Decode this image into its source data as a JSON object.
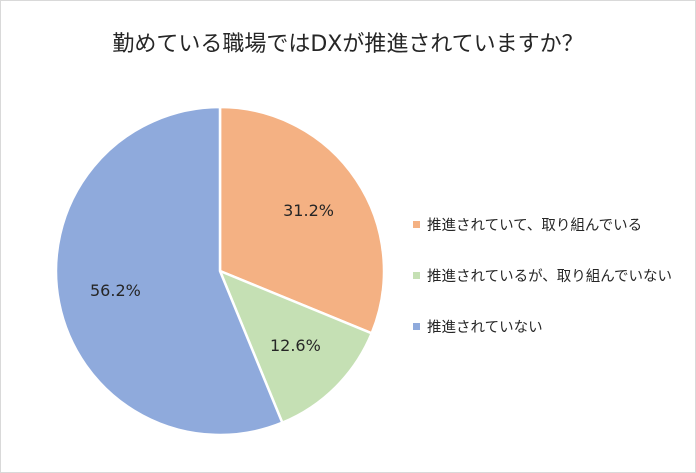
{
  "chart_data": {
    "type": "pie",
    "title": "勤めている職場ではDXが推進されていますか？",
    "slices": [
      {
        "label": "推進されていて、取り組んでいる",
        "value": 31.2,
        "display": "31.2%",
        "color": "#f4b183"
      },
      {
        "label": "推進されているが、取り組んでいない",
        "value": 12.6,
        "display": "12.6%",
        "color": "#c5e0b4"
      },
      {
        "label": "推進されていない",
        "value": 56.2,
        "display": "56.2%",
        "color": "#8faadc"
      }
    ],
    "start_angle": "12 o'clock",
    "direction": "clockwise",
    "legend_position": "right"
  }
}
